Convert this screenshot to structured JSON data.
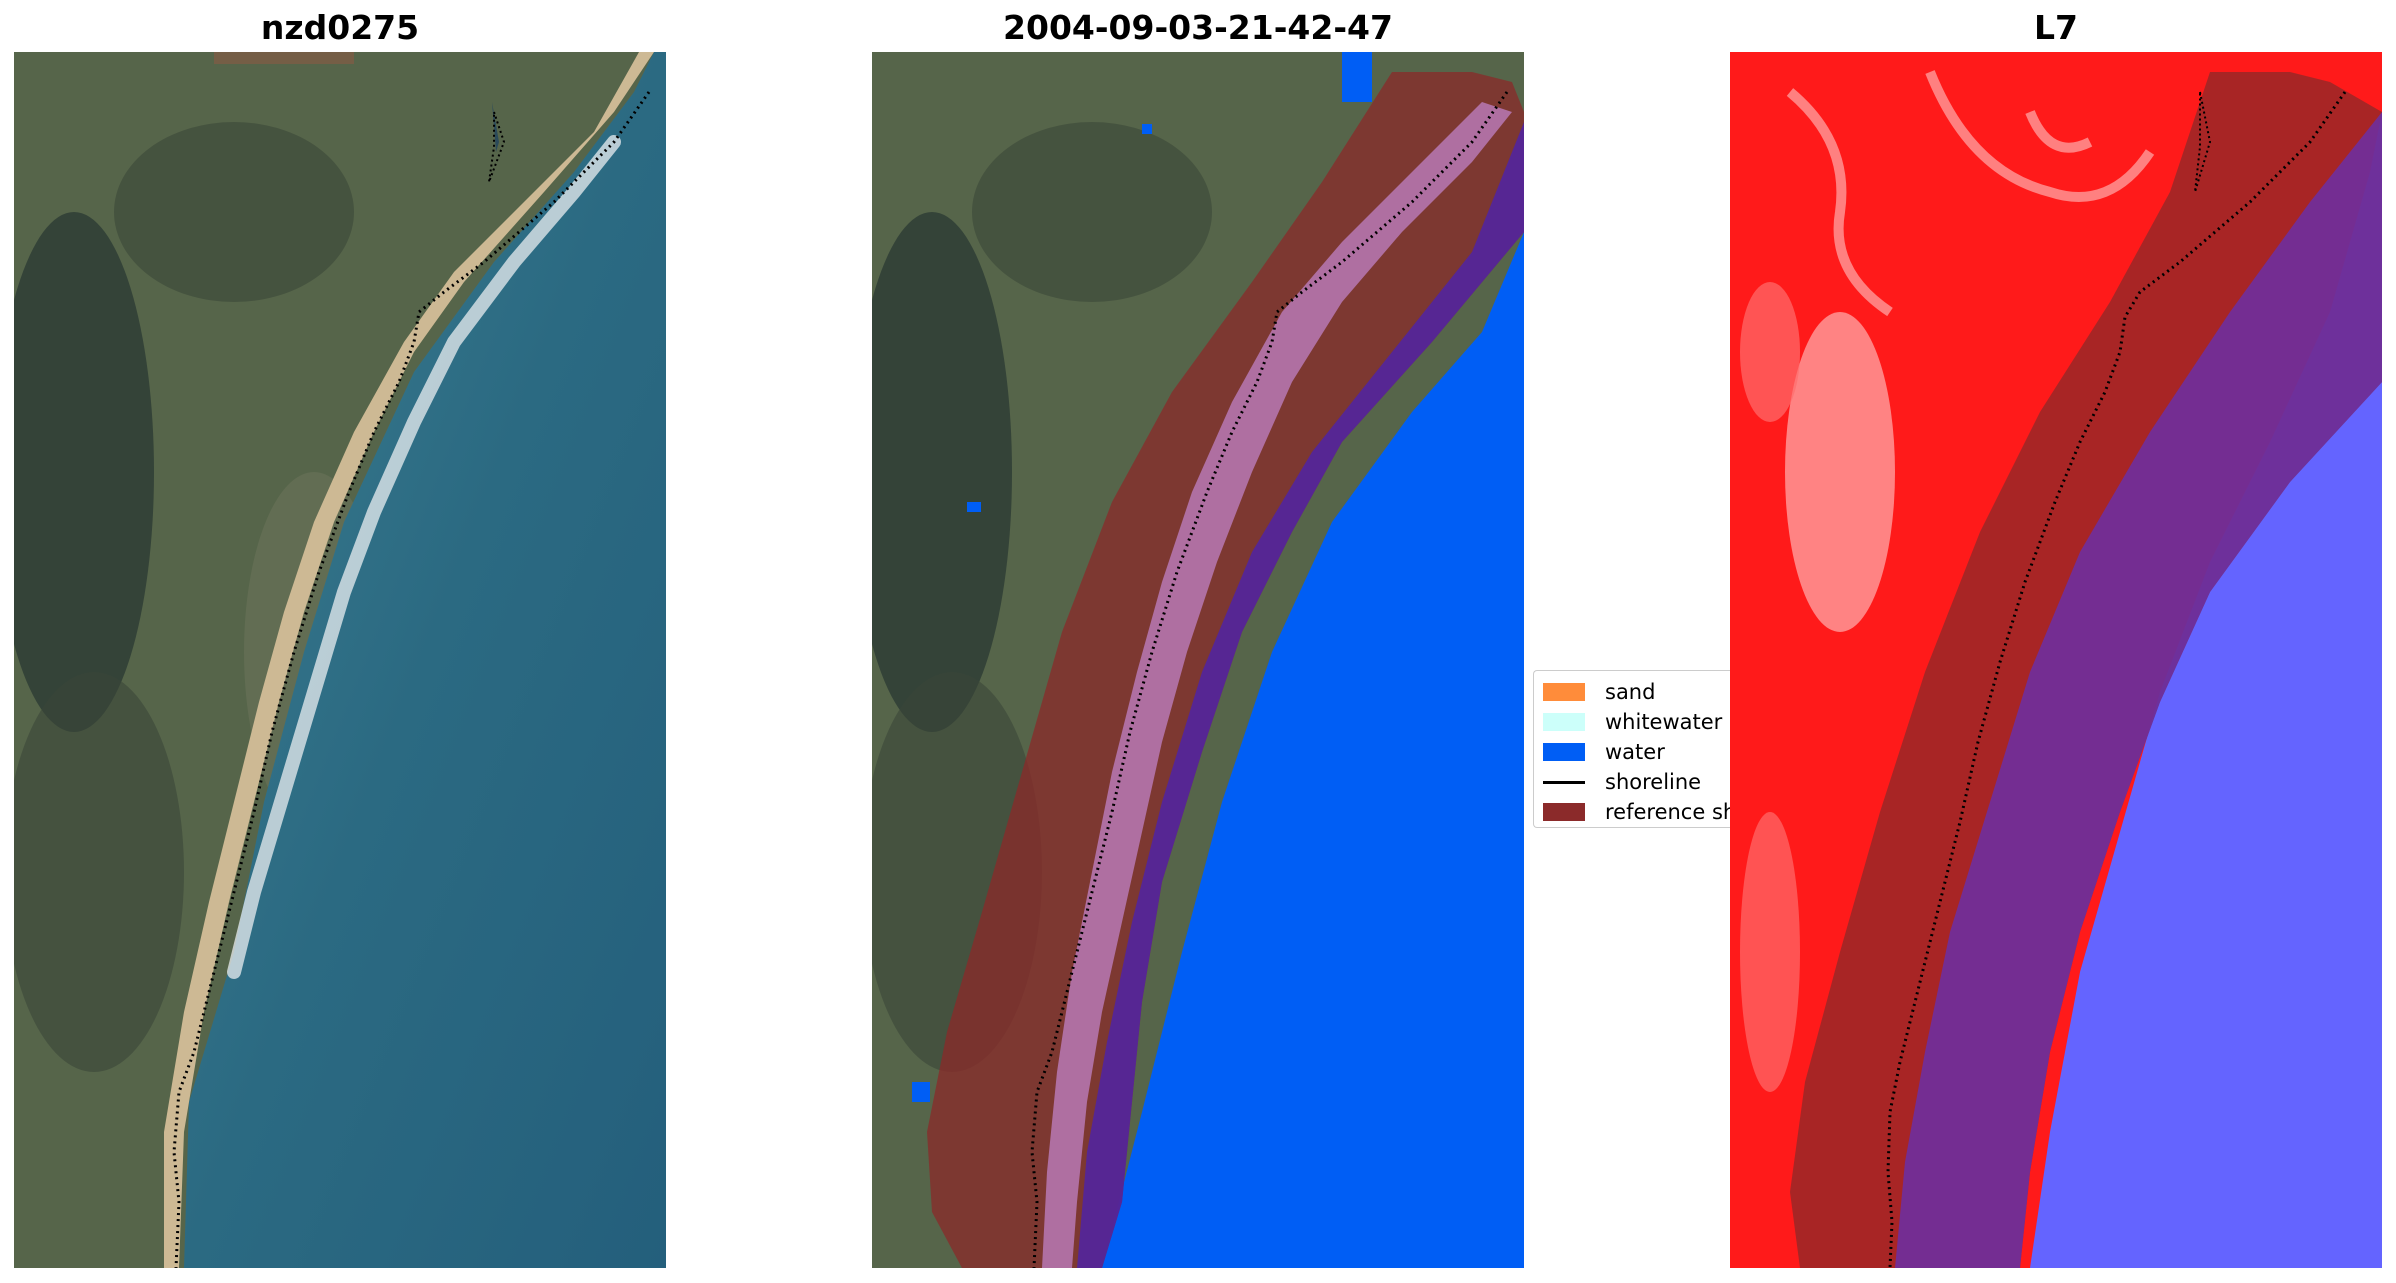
{
  "panels": [
    {
      "title": "nzd0275"
    },
    {
      "title": "2004-09-03-21-42-47"
    },
    {
      "title": "L7"
    }
  ],
  "legend": {
    "items": [
      {
        "label": "sand",
        "color": "#ff8c3a",
        "kind": "patch"
      },
      {
        "label": "whitewater",
        "color": "#ccfffa",
        "kind": "patch"
      },
      {
        "label": "water",
        "color": "#005ef5",
        "kind": "patch"
      },
      {
        "label": "shoreline",
        "color": "#000000",
        "kind": "line"
      },
      {
        "label": "reference shoreline buffer",
        "color": "#8b2a2a",
        "kind": "patch"
      }
    ]
  },
  "colors": {
    "land": "#5d6b4e",
    "ocean": "#2c6c85",
    "beach": "#c9b48f",
    "water_class": "#005ef5",
    "buffer": "#8b2a2a",
    "mndwi_land": "#ff1a1a",
    "mndwi_water": "#5f5fff"
  }
}
